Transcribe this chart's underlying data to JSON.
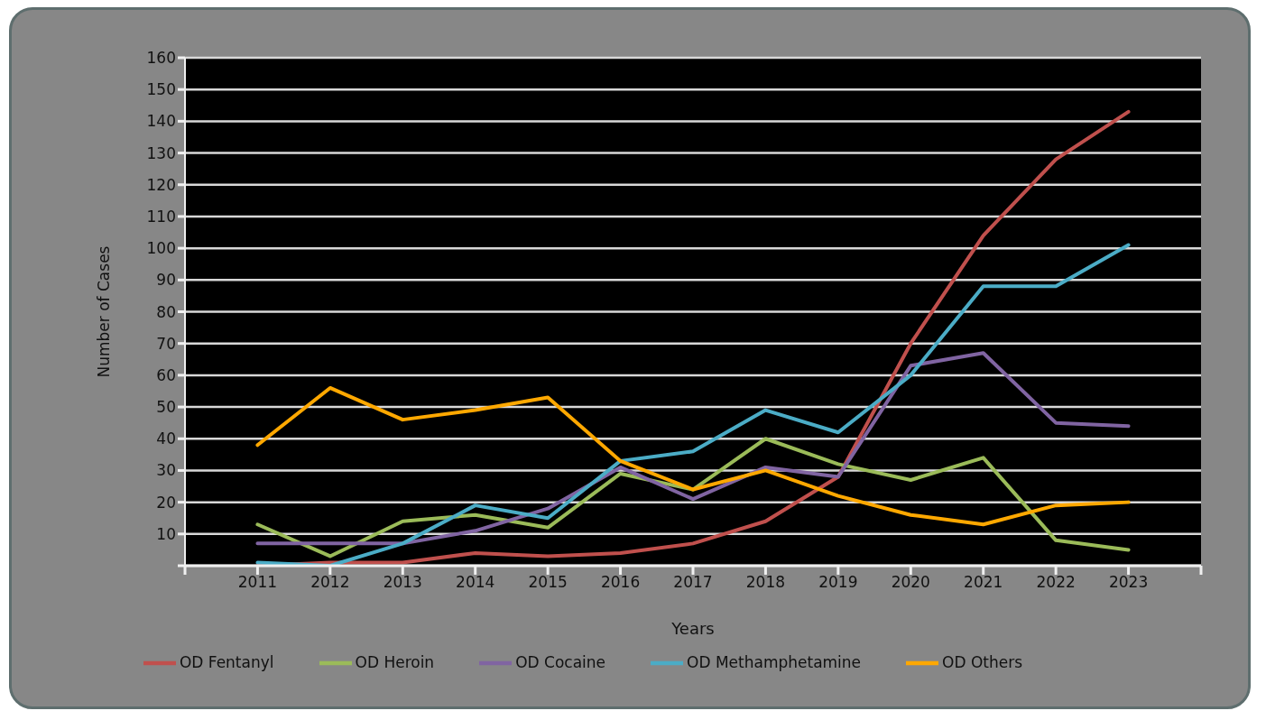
{
  "chart_data": {
    "type": "line",
    "xlabel": "Years",
    "ylabel": "Number of Cases",
    "x": [
      2011,
      2012,
      2013,
      2014,
      2015,
      2016,
      2017,
      2018,
      2019,
      2020,
      2021,
      2022,
      2023
    ],
    "xlim": [
      2010,
      2024
    ],
    "xticks": [
      {
        "value": 2010,
        "label": null
      },
      2011,
      2012,
      2013,
      2014,
      2015,
      2016,
      2017,
      2018,
      2019,
      2020,
      2021,
      2022,
      2023,
      {
        "value": 2024,
        "label": null
      }
    ],
    "ylim": [
      0,
      160
    ],
    "yticks": [
      {
        "value": 0,
        "label": null
      },
      10,
      20,
      30,
      40,
      50,
      60,
      70,
      80,
      90,
      100,
      110,
      120,
      130,
      140,
      150,
      160
    ],
    "grid": "y",
    "legend": "bottom",
    "marker": "none",
    "line_style": "solid",
    "series": [
      {
        "name": "OD Fentanyl",
        "color": "#c0504d",
        "values": [
          0,
          1,
          1,
          4,
          3,
          4,
          7,
          14,
          28,
          70,
          104,
          128,
          143
        ]
      },
      {
        "name": "OD Heroin",
        "color": "#9bbb59",
        "values": [
          13,
          3,
          14,
          16,
          12,
          29,
          24,
          40,
          32,
          27,
          34,
          8,
          5
        ]
      },
      {
        "name": "OD Cocaine",
        "color": "#8064a2",
        "values": [
          7,
          7,
          7,
          11,
          18,
          31,
          21,
          31,
          28,
          63,
          67,
          45,
          44
        ]
      },
      {
        "name": "OD Methamphetamine",
        "color": "#4bacc6",
        "values": [
          1,
          0,
          7,
          19,
          15,
          33,
          36,
          49,
          42,
          60,
          88,
          88,
          101
        ]
      },
      {
        "name": "OD Others",
        "color": "#ffa800",
        "values": [
          38,
          56,
          46,
          49,
          53,
          33,
          24,
          30,
          22,
          16,
          13,
          19,
          20
        ]
      }
    ]
  }
}
